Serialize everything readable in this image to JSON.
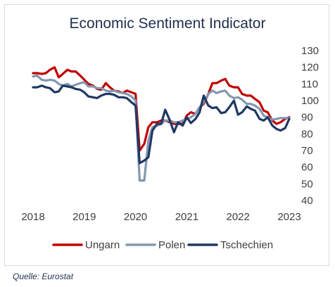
{
  "chart_data": {
    "type": "line",
    "title": "Economic Sentiment Indicator",
    "xlabel": "",
    "ylabel": "",
    "ylim": [
      40,
      130
    ],
    "y_ticks": [
      "130",
      "120",
      "110",
      "100",
      "90",
      "80",
      "70",
      "60",
      "50",
      "40"
    ],
    "x_ticks": [
      "2018",
      "2019",
      "2020",
      "2021",
      "2022",
      "2023"
    ],
    "x_range": [
      2018.0,
      2023.0
    ],
    "grid": false,
    "legend_position": "bottom",
    "series": [
      {
        "name": "Ungarn",
        "color": "#c00000",
        "x": [
          2018.0,
          2018.08,
          2018.17,
          2018.25,
          2018.33,
          2018.42,
          2018.5,
          2018.58,
          2018.67,
          2018.75,
          2018.83,
          2018.92,
          2019.0,
          2019.08,
          2019.17,
          2019.25,
          2019.33,
          2019.42,
          2019.5,
          2019.58,
          2019.67,
          2019.75,
          2019.83,
          2019.92,
          2020.0,
          2020.08,
          2020.17,
          2020.25,
          2020.33,
          2020.42,
          2020.5,
          2020.58,
          2020.67,
          2020.75,
          2020.83,
          2020.92,
          2021.0,
          2021.08,
          2021.17,
          2021.25,
          2021.33,
          2021.42,
          2021.5,
          2021.58,
          2021.67,
          2021.75,
          2021.83,
          2021.92,
          2022.0,
          2022.08,
          2022.17,
          2022.25,
          2022.33,
          2022.42,
          2022.5,
          2022.58,
          2022.67,
          2022.75,
          2022.83,
          2022.92,
          2023.0
        ],
        "values": [
          116.5,
          116.5,
          116,
          116.5,
          118.5,
          120,
          114,
          116,
          118.5,
          117.5,
          117.5,
          115,
          112.5,
          110,
          109,
          107,
          106.5,
          110.5,
          108,
          106,
          105.5,
          104.5,
          106,
          105,
          104,
          70,
          74,
          84,
          87,
          87,
          88,
          88,
          87,
          86,
          86,
          86,
          91,
          93,
          92,
          96,
          98,
          104,
          110.5,
          110.5,
          112,
          113,
          109,
          108,
          108,
          104,
          103,
          103,
          101,
          99,
          94,
          93,
          88,
          86,
          87,
          89,
          90
        ]
      },
      {
        "name": "Polen",
        "color": "#8497b0",
        "x": [
          2018.0,
          2018.08,
          2018.17,
          2018.25,
          2018.33,
          2018.42,
          2018.5,
          2018.58,
          2018.67,
          2018.75,
          2018.83,
          2018.92,
          2019.0,
          2019.08,
          2019.17,
          2019.25,
          2019.33,
          2019.42,
          2019.5,
          2019.58,
          2019.67,
          2019.75,
          2019.83,
          2019.92,
          2020.0,
          2020.08,
          2020.17,
          2020.25,
          2020.33,
          2020.42,
          2020.5,
          2020.58,
          2020.67,
          2020.75,
          2020.83,
          2020.92,
          2021.0,
          2021.08,
          2021.17,
          2021.25,
          2021.33,
          2021.42,
          2021.5,
          2021.58,
          2021.67,
          2021.75,
          2021.83,
          2021.92,
          2022.0,
          2022.08,
          2022.17,
          2022.25,
          2022.33,
          2022.42,
          2022.5,
          2022.58,
          2022.67,
          2022.75,
          2022.83,
          2022.92,
          2023.0
        ],
        "values": [
          114.5,
          115,
          112.5,
          112,
          112.5,
          112,
          110,
          109,
          110,
          108.5,
          109.5,
          110.5,
          111,
          108.5,
          108.5,
          107.5,
          107.5,
          106,
          105.5,
          106,
          105,
          104.5,
          104,
          102.5,
          100,
          52,
          52,
          76,
          84,
          85,
          86,
          88,
          88,
          87,
          87,
          88,
          89,
          90,
          92,
          96,
          99,
          104,
          106,
          104.5,
          105.5,
          106,
          103,
          101.5,
          102,
          100.5,
          98,
          98,
          97,
          95,
          91,
          90,
          88.5,
          89,
          89.5,
          89.5,
          89.5
        ]
      },
      {
        "name": "Tschechien",
        "color": "#1f3864",
        "x": [
          2018.0,
          2018.08,
          2018.17,
          2018.25,
          2018.33,
          2018.42,
          2018.5,
          2018.58,
          2018.67,
          2018.75,
          2018.83,
          2018.92,
          2019.0,
          2019.08,
          2019.17,
          2019.25,
          2019.33,
          2019.42,
          2019.5,
          2019.58,
          2019.67,
          2019.75,
          2019.83,
          2019.92,
          2020.0,
          2020.08,
          2020.17,
          2020.25,
          2020.33,
          2020.42,
          2020.5,
          2020.58,
          2020.67,
          2020.75,
          2020.83,
          2020.92,
          2021.0,
          2021.08,
          2021.17,
          2021.25,
          2021.33,
          2021.42,
          2021.5,
          2021.58,
          2021.67,
          2021.75,
          2021.83,
          2021.92,
          2022.0,
          2022.08,
          2022.17,
          2022.25,
          2022.33,
          2022.42,
          2022.5,
          2022.58,
          2022.67,
          2022.75,
          2022.83,
          2022.92,
          2023.0
        ],
        "values": [
          108,
          108,
          109,
          108,
          107.5,
          105,
          105.5,
          109,
          108.5,
          108,
          107,
          106.5,
          105,
          102.5,
          102,
          101.5,
          103,
          104,
          104,
          103.5,
          102,
          102,
          101.5,
          99,
          97,
          62.5,
          64,
          66,
          82,
          86,
          86,
          94.5,
          88,
          81,
          87,
          85,
          90,
          86.5,
          89,
          93,
          103,
          97,
          95.5,
          96,
          92.5,
          93,
          96,
          100,
          91.5,
          93,
          96.5,
          95,
          94,
          89,
          88,
          90,
          85,
          83,
          82,
          83.5,
          89
        ]
      }
    ]
  },
  "source": "Quelle: Eurostat"
}
